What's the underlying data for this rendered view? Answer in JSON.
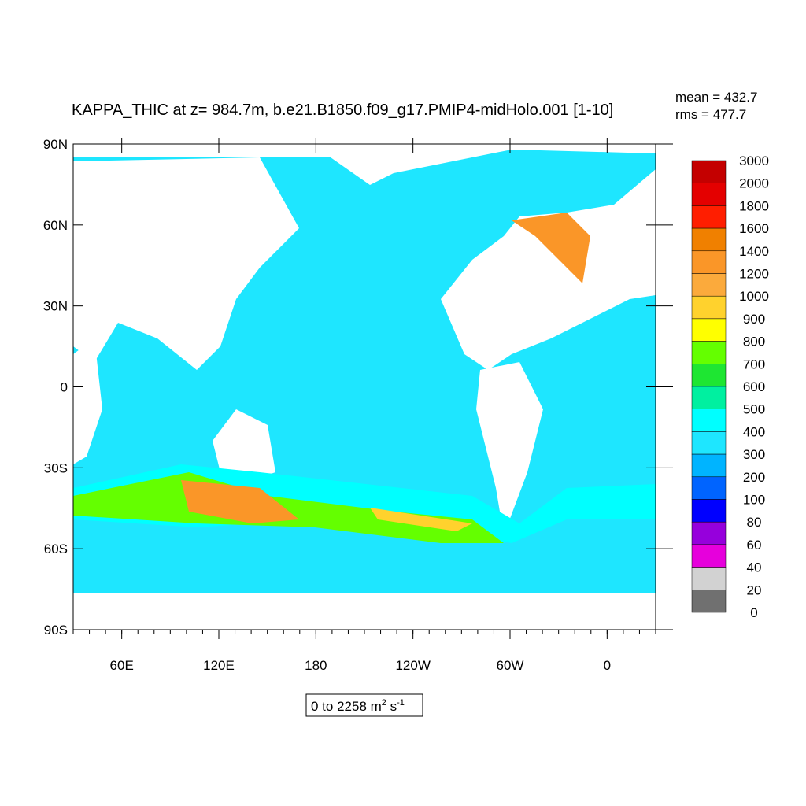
{
  "title": "KAPPA_THIC at z= 984.7m, b.e21.B1850.f09_g17.PMIP4-midHolo.001 [1-10]",
  "stats": {
    "mean": "mean = 432.7",
    "rms": "rms = 477.7"
  },
  "map": {
    "lat_labels": [
      "90N",
      "60N",
      "30N",
      "0",
      "30S",
      "60S",
      "90S"
    ],
    "lon_labels": [
      "60E",
      "120E",
      "180",
      "120W",
      "60W",
      "0"
    ]
  },
  "colorbar": {
    "levels": [
      3000,
      2000,
      1800,
      1600,
      1400,
      1200,
      1000,
      900,
      800,
      700,
      600,
      500,
      400,
      300,
      200,
      100,
      80,
      60,
      40,
      20,
      0
    ],
    "colors": [
      "#c40000",
      "#e40000",
      "#ff1e00",
      "#f08000",
      "#fa9628",
      "#fbaa3c",
      "#ffd22d",
      "#ffff00",
      "#64ff00",
      "#1ee632",
      "#00f0a0",
      "#00ffff",
      "#1ee6ff",
      "#00b4ff",
      "#0064ff",
      "#0000ff",
      "#9600dc",
      "#e600dc",
      "#d2d2d2",
      "#707070"
    ]
  },
  "range_label": {
    "text": "0 to 2258 m",
    "sup1": "2",
    "unit2": " s",
    "sup2": "-1"
  }
}
